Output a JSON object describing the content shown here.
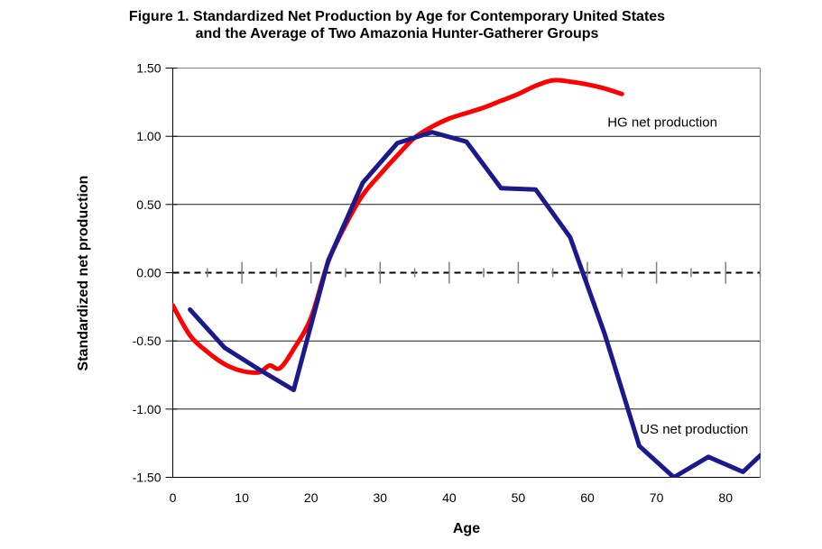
{
  "figure": {
    "title_line1": "Figure 1. Standardized Net Production by Age for Contemporary United States",
    "title_line2": "and the Average of Two Amazonia Hunter-Gatherer Groups"
  },
  "chart_data": {
    "type": "line",
    "title": "Figure 1. Standardized Net Production by Age for Contemporary United States and the Average of Two Amazonia Hunter-Gatherer Groups",
    "xlabel": "Age",
    "ylabel": "Standardized net production",
    "xlim": [
      0,
      85
    ],
    "ylim": [
      -1.5,
      1.5
    ],
    "x_major_ticks": [
      0,
      10,
      20,
      30,
      40,
      50,
      60,
      70,
      80
    ],
    "x_minor_tick_step": 5,
    "y_ticks": [
      "1.50",
      "1.00",
      "0.50",
      "0.00",
      "-0.50",
      "-1.00",
      "-1.50"
    ],
    "gridlines_y": [
      1.0,
      0.5,
      -0.5,
      -1.0
    ],
    "zero_line": {
      "value": 0,
      "style": "dashed"
    },
    "grid": "horizontal-only",
    "legend_position": "labels-inside-plot",
    "colors": {
      "hg": "#FF0000",
      "us": "#1A1A8C",
      "grid": "#1a1a1a",
      "border": "#808080",
      "axis": "#000000",
      "tick": "#808080"
    },
    "series": [
      {
        "name": "HG net production",
        "color": "#FF0000",
        "smooth": true,
        "label_anchor": {
          "age": 62.9,
          "value": 1.07
        },
        "x": [
          0,
          2.5,
          5,
          7.5,
          10,
          12.5,
          14,
          15.5,
          17.5,
          20,
          22.5,
          25,
          27.5,
          30,
          32.5,
          35,
          37.5,
          40,
          42.5,
          45,
          47.5,
          50,
          52.5,
          55,
          57.5,
          60,
          62.5,
          65
        ],
        "values": [
          -0.24,
          -0.46,
          -0.58,
          -0.67,
          -0.72,
          -0.73,
          -0.68,
          -0.7,
          -0.56,
          -0.33,
          0.08,
          0.35,
          0.57,
          0.72,
          0.86,
          0.99,
          1.07,
          1.13,
          1.17,
          1.21,
          1.26,
          1.31,
          1.37,
          1.41,
          1.4,
          1.38,
          1.35,
          1.31
        ]
      },
      {
        "name": "US net production",
        "color": "#1A1A8C",
        "smooth": false,
        "label_anchor": {
          "age": 67.6,
          "value": -1.18
        },
        "x": [
          2.5,
          7.5,
          12.5,
          17.5,
          22.5,
          27.5,
          32.5,
          37.5,
          42.5,
          47.5,
          52.5,
          57.5,
          62.5,
          67.5,
          72.5,
          77.5,
          82.5,
          85
        ],
        "values": [
          -0.27,
          -0.55,
          -0.71,
          -0.86,
          0.09,
          0.66,
          0.95,
          1.03,
          0.96,
          0.62,
          0.61,
          0.26,
          -0.45,
          -1.27,
          -1.5,
          -1.35,
          -1.46,
          -1.34
        ]
      }
    ]
  }
}
